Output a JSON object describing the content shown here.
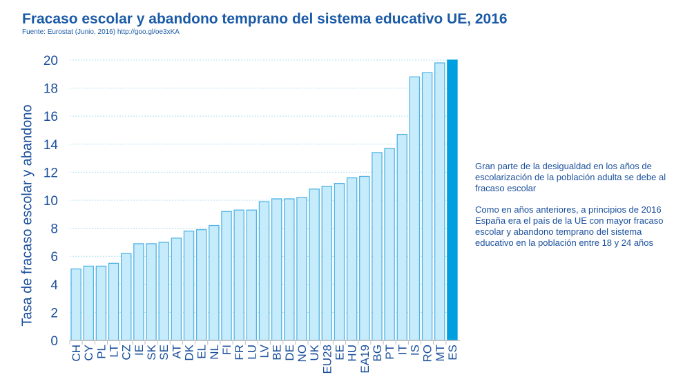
{
  "chart_data": {
    "type": "bar",
    "title": "Fracaso escolar y abandono temprano del sistema educativo UE, 2016",
    "subtitle": "Fuente: Eurostat (Junio, 2016) http://goo.gl/oe3xKA",
    "xlabel": "",
    "ylabel": "Tasa de fracaso escolar y abandono",
    "ylim": [
      0,
      20
    ],
    "yticks": [
      0,
      2,
      4,
      6,
      8,
      10,
      12,
      14,
      16,
      18,
      20
    ],
    "grid": true,
    "categories": [
      "CH",
      "CY",
      "PL",
      "LT",
      "CZ",
      "IE",
      "SK",
      "SE",
      "AT",
      "DK",
      "EL",
      "NL",
      "FI",
      "FR",
      "LU",
      "LV",
      "BE",
      "DE",
      "NO",
      "UK",
      "EU28",
      "EE",
      "HU",
      "EA19",
      "BG",
      "PT",
      "IT",
      "IS",
      "RO",
      "MT",
      "ES"
    ],
    "values": [
      5.1,
      5.3,
      5.3,
      5.5,
      6.2,
      6.9,
      6.9,
      7.0,
      7.3,
      7.8,
      7.9,
      8.2,
      9.2,
      9.3,
      9.3,
      9.9,
      10.1,
      10.1,
      10.2,
      10.8,
      11.0,
      11.2,
      11.6,
      11.7,
      13.4,
      13.7,
      14.7,
      18.8,
      19.1,
      19.8,
      20.0
    ],
    "highlight": "ES",
    "colors": {
      "bar": "#c6ecfb",
      "bar_border": "#4fb3e6",
      "highlight": "#009fdf",
      "text": "#1a4f9c",
      "grid": "#aee0f5"
    }
  },
  "notes": [
    "Gran parte de la desigualdad en los años de escolarización de la población adulta se debe al fracaso escolar",
    "Como en años anteriores, a principios de 2016 España era el país de la UE con mayor fracaso escolar y abandono temprano del sistema educativo en la población entre 18 y 24 años"
  ]
}
